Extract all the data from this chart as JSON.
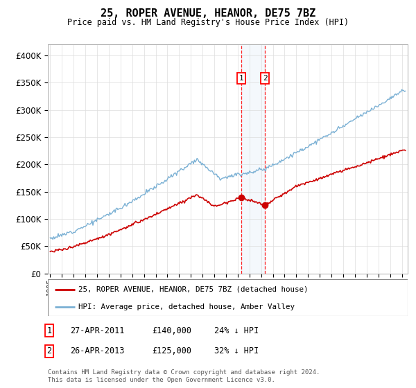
{
  "title": "25, ROPER AVENUE, HEANOR, DE75 7BZ",
  "subtitle": "Price paid vs. HM Land Registry's House Price Index (HPI)",
  "ylabel_ticks": [
    "£0",
    "£50K",
    "£100K",
    "£150K",
    "£200K",
    "£250K",
    "£300K",
    "£350K",
    "£400K"
  ],
  "ytick_values": [
    0,
    50000,
    100000,
    150000,
    200000,
    250000,
    300000,
    350000,
    400000
  ],
  "ylim": [
    0,
    420000
  ],
  "legend_line1": "25, ROPER AVENUE, HEANOR, DE75 7BZ (detached house)",
  "legend_line2": "HPI: Average price, detached house, Amber Valley",
  "sale1_date": "27-APR-2011",
  "sale1_price": "£140,000",
  "sale1_pct": "24% ↓ HPI",
  "sale1_x": 2011.32,
  "sale1_y": 140000,
  "sale2_date": "26-APR-2013",
  "sale2_price": "£125,000",
  "sale2_pct": "32% ↓ HPI",
  "sale2_x": 2013.32,
  "sale2_y": 125000,
  "red_line_color": "#cc0000",
  "blue_line_color": "#7ab0d4",
  "footer": "Contains HM Land Registry data © Crown copyright and database right 2024.\nThis data is licensed under the Open Government Licence v3.0.",
  "xlim_start": 1994.8,
  "xlim_end": 2025.5
}
